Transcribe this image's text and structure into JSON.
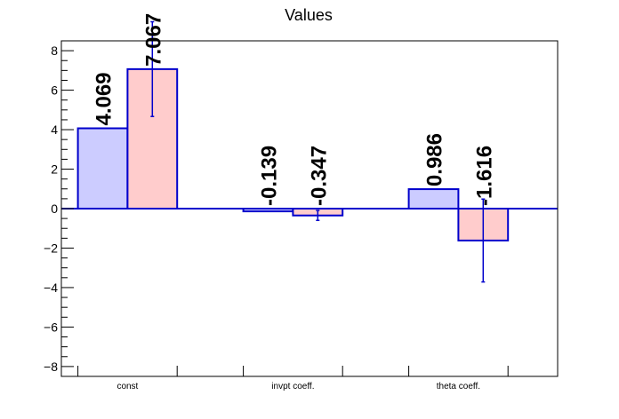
{
  "chart_data": {
    "type": "bar",
    "title": "Values",
    "xlabel": "",
    "ylabel": "",
    "categories": [
      "const",
      "invpt coeff.",
      "theta coeff."
    ],
    "ylim": [
      -8.5,
      8.5
    ],
    "y_ticks": [
      -8,
      -6,
      -4,
      -2,
      0,
      2,
      4,
      6,
      8
    ],
    "y_tick_labels": [
      "−8",
      "−6",
      "−4",
      "−2",
      "0",
      "2",
      "4",
      "6",
      "8"
    ],
    "grid": false,
    "series": [
      {
        "values": [
          4.069,
          -0.139,
          0.986
        ],
        "labels": [
          "4.069",
          "-0.139",
          "0.986"
        ],
        "errors": [
          0,
          0,
          0
        ],
        "fill": "#ccccff",
        "stroke": "#0000cc"
      },
      {
        "values": [
          7.067,
          -0.347,
          -1.616
        ],
        "labels": [
          "7.067",
          "-0.347",
          "-1.616"
        ],
        "errors": [
          2.4,
          0.25,
          2.1
        ],
        "fill": "#ffcccc",
        "stroke": "#0000cc"
      }
    ],
    "zero_line_color": "#0000cc",
    "frame_color": "#000000"
  }
}
